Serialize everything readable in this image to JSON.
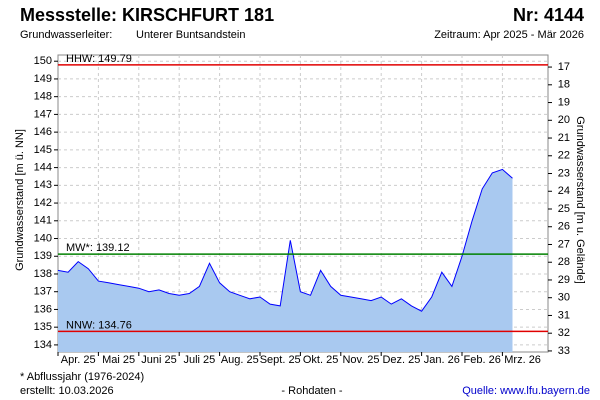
{
  "header": {
    "title": "Messstelle: KIRSCHFURT 181",
    "number": "Nr: 4144",
    "aquifer_label": "Grundwasserleiter:",
    "aquifer": "Unterer Buntsandstein",
    "period": "Zeitraum: Apr 2025 - Mär 2026"
  },
  "chart_data": {
    "type": "area",
    "y_label": "Grundwasserstand [m ü. NN]",
    "y2_label": "Grundwasserstand [m u. Gelände]",
    "categories": [
      "Apr. 25",
      null,
      null,
      null,
      "Mai 25",
      null,
      null,
      null,
      "Juni 25",
      null,
      null,
      null,
      "Juli 25",
      null,
      null,
      null,
      "Aug. 25",
      null,
      null,
      null,
      "Sept. 25",
      null,
      null,
      null,
      "Okt. 25",
      null,
      null,
      null,
      "Nov. 25",
      null,
      null,
      null,
      "Dez. 25",
      null,
      null,
      null,
      "Jan. 26",
      null,
      null,
      null,
      "Feb. 26",
      null,
      null,
      null,
      "Mrz. 26",
      null
    ],
    "series": [
      {
        "name": "Grundwasserstand",
        "color": "#0000ff",
        "fill": "#a9c9f0",
        "values": [
          138.2,
          138.1,
          138.7,
          138.3,
          137.6,
          137.5,
          137.4,
          137.3,
          137.2,
          137.0,
          137.1,
          136.9,
          136.8,
          136.9,
          137.3,
          138.6,
          137.5,
          137.0,
          136.8,
          136.6,
          136.7,
          136.3,
          136.2,
          139.9,
          137.0,
          136.8,
          138.2,
          137.3,
          136.8,
          136.7,
          136.6,
          136.5,
          136.7,
          136.3,
          136.6,
          136.2,
          135.9,
          136.7,
          138.1,
          137.3,
          139.0,
          141.0,
          142.8,
          143.7,
          143.9,
          143.4
        ]
      }
    ],
    "ylim": [
      133.6,
      150.35
    ],
    "yticks": [
      134,
      135,
      136,
      137,
      138,
      139,
      140,
      141,
      142,
      143,
      144,
      145,
      146,
      147,
      148,
      149,
      150
    ],
    "y2lim": [
      33.06,
      16.32
    ],
    "y2ticks": [
      17,
      18,
      19,
      20,
      21,
      22,
      23,
      24,
      25,
      26,
      27,
      28,
      29,
      30,
      31,
      32,
      33
    ],
    "grid": true,
    "reference_lines": [
      {
        "label": "HHW: 149.79",
        "value": 149.79,
        "color": "#e00000"
      },
      {
        "label": "MW*: 139.12",
        "value": 139.12,
        "color": "#008000"
      },
      {
        "label": "NNW: 134.76",
        "value": 134.76,
        "color": "#e00000"
      }
    ]
  },
  "footer": {
    "note": "* Abflussjahr (1976-2024)",
    "created": "erstellt:  10.03.2026",
    "raw": "- Rohdaten -",
    "source": "Quelle:  www.lfu.bayern.de"
  }
}
